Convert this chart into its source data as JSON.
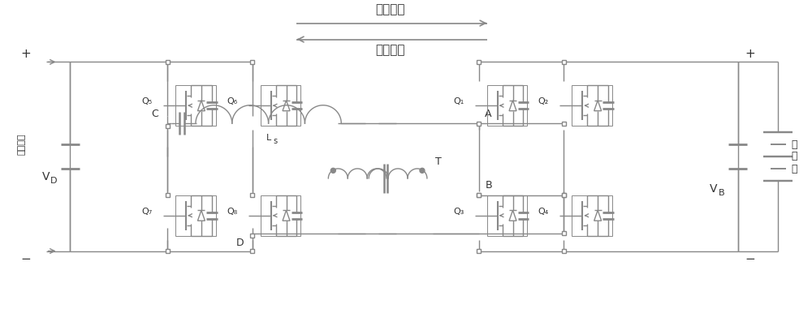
{
  "bg_color": "#ffffff",
  "line_color": "#888888",
  "text_color": "#333333",
  "fig_width": 10.0,
  "fig_height": 3.86,
  "charge_label": "充电方向",
  "discharge_label": "放电方向",
  "dc_bus_label": "直流母线",
  "vd_label": "V",
  "vd_sub": "D",
  "vb_label": "V",
  "vb_sub": "B",
  "battery_label": "蓄\n电\n池",
  "ls_label": "L",
  "ls_sub": "s",
  "T_label": "T",
  "plus": "+",
  "minus": "−"
}
